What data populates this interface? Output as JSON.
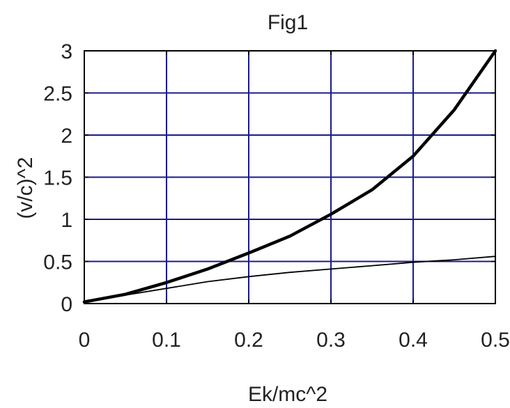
{
  "chart_data": {
    "type": "line",
    "title": "Fig1",
    "xlabel": "Ek/mc^2",
    "ylabel": "(v/c)^2",
    "xlim": [
      0,
      0.5
    ],
    "ylim": [
      0,
      3
    ],
    "grid": true,
    "x_ticks": [
      0,
      0.1,
      0.2,
      0.3,
      0.4,
      0.5
    ],
    "x_tick_labels": [
      "0",
      "0.1",
      "0.2",
      "0.3",
      "0.4",
      "0.5"
    ],
    "y_ticks": [
      0,
      0.5,
      1,
      1.5,
      2,
      2.5,
      3
    ],
    "y_tick_labels": [
      "0",
      "0.5",
      "1",
      "1.5",
      "2",
      "2.5",
      "3"
    ],
    "series": [
      {
        "x": [
          0,
          0.05,
          0.1,
          0.15,
          0.2,
          0.25,
          0.3,
          0.35,
          0.4,
          0.45,
          0.5
        ],
        "y": [
          0.02,
          0.11,
          0.25,
          0.41,
          0.6,
          0.8,
          1.06,
          1.35,
          1.75,
          2.3,
          3.0
        ]
      },
      {
        "x": [
          0,
          0.05,
          0.1,
          0.15,
          0.2,
          0.25,
          0.3,
          0.35,
          0.4,
          0.45,
          0.5
        ],
        "y": [
          0.02,
          0.1,
          0.18,
          0.26,
          0.32,
          0.37,
          0.41,
          0.45,
          0.49,
          0.52,
          0.56
        ]
      }
    ],
    "colors": {
      "grid": "#1a1a8c",
      "axes": "#000000",
      "line": "#000000"
    }
  }
}
